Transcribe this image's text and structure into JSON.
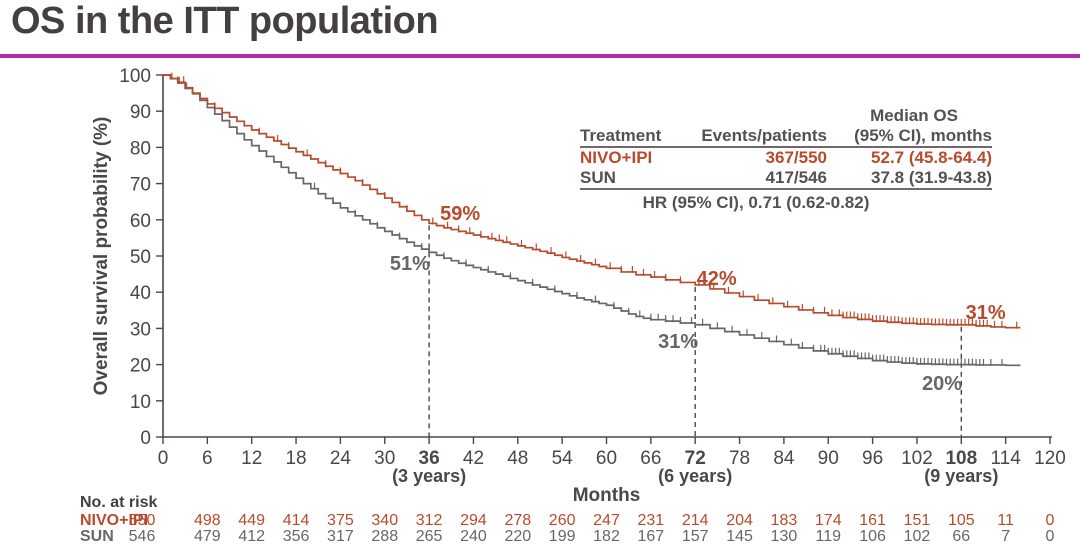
{
  "slide": {
    "title": "OS in the ITT population"
  },
  "colors": {
    "nivo": "#b84b2c",
    "sun": "#676767",
    "axis": "#4c4747",
    "title": "#454040",
    "accent": "#b32aab",
    "table_text": "#565050"
  },
  "stats_table": {
    "median_header": "Median OS",
    "columns": [
      "Treatment",
      "Events/patients",
      "(95% CI), months"
    ],
    "rows": [
      {
        "treatment": "NIVO+IPI",
        "events_patients": "367/550",
        "median_os": "52.7 (45.8-64.4)",
        "color_key": "nivo"
      },
      {
        "treatment": "SUN",
        "events_patients": "417/546",
        "median_os": "37.8 (31.9-43.8)",
        "color_key": "sun"
      }
    ],
    "footer": "HR (95% CI), 0.71 (0.62-0.82)"
  },
  "chart_data": {
    "type": "line",
    "subtype": "kaplan-meier-step",
    "xlabel": "Months",
    "ylabel": "Overall survival probability (%)",
    "xlim": [
      0,
      120
    ],
    "ylim": [
      0,
      100
    ],
    "x_ticks": [
      0,
      6,
      12,
      18,
      24,
      30,
      36,
      42,
      48,
      54,
      60,
      66,
      72,
      78,
      84,
      90,
      96,
      102,
      108,
      114,
      120
    ],
    "y_ticks": [
      0,
      10,
      20,
      30,
      40,
      50,
      60,
      70,
      80,
      90,
      100
    ],
    "x_end": 116,
    "grid": false,
    "landmarks": [
      {
        "month": 36,
        "year_label": "(3 years)",
        "nivo_pct": 59,
        "sun_pct": 51
      },
      {
        "month": 72,
        "year_label": "(6 years)",
        "nivo_pct": 42,
        "sun_pct": 31
      },
      {
        "month": 108,
        "year_label": "(9 years)",
        "nivo_pct": 31,
        "sun_pct": 20
      }
    ],
    "annotations": [
      {
        "text": "59%",
        "month": 40.2,
        "pct": 61.9,
        "color_key": "nivo"
      },
      {
        "text": "51%",
        "month": 33.4,
        "pct": 48.0,
        "color_key": "sun"
      },
      {
        "text": "42%",
        "month": 74.9,
        "pct": 43.9,
        "color_key": "nivo"
      },
      {
        "text": "31%",
        "month": 69.7,
        "pct": 26.5,
        "color_key": "sun"
      },
      {
        "text": "31%",
        "month": 111.3,
        "pct": 34.5,
        "color_key": "nivo"
      },
      {
        "text": "20%",
        "month": 105.4,
        "pct": 14.9,
        "color_key": "sun"
      }
    ],
    "series": [
      {
        "name": "NIVO+IPI",
        "color_key": "nivo",
        "points": [
          [
            0,
            100
          ],
          [
            1,
            99
          ],
          [
            2,
            98
          ],
          [
            3,
            96.5
          ],
          [
            4,
            95
          ],
          [
            5,
            93.5
          ],
          [
            6,
            92
          ],
          [
            7,
            90.8
          ],
          [
            8,
            89.6
          ],
          [
            9,
            88.4
          ],
          [
            10,
            87.2
          ],
          [
            11,
            86
          ],
          [
            12,
            84.8
          ],
          [
            13,
            83.8
          ],
          [
            14,
            82.8
          ],
          [
            15,
            81.8
          ],
          [
            16,
            80.8
          ],
          [
            17,
            79.8
          ],
          [
            18,
            78.8
          ],
          [
            19,
            77.8
          ],
          [
            20,
            76.8
          ],
          [
            21,
            75.8
          ],
          [
            22,
            74.8
          ],
          [
            23,
            73.8
          ],
          [
            24,
            72.8
          ],
          [
            25,
            71.8
          ],
          [
            26,
            70.8
          ],
          [
            27,
            69.6
          ],
          [
            28,
            68.4
          ],
          [
            29,
            67.2
          ],
          [
            30,
            66
          ],
          [
            31,
            64.8
          ],
          [
            32,
            63.6
          ],
          [
            33,
            62.4
          ],
          [
            34,
            61.2
          ],
          [
            35,
            60
          ],
          [
            36,
            59
          ],
          [
            37,
            58.4
          ],
          [
            38,
            57.8
          ],
          [
            39,
            57.3
          ],
          [
            40,
            56.8
          ],
          [
            41,
            56.3
          ],
          [
            42,
            55.8
          ],
          [
            43,
            55.3
          ],
          [
            44,
            54.8
          ],
          [
            45,
            54.3
          ],
          [
            46,
            53.8
          ],
          [
            47,
            53.3
          ],
          [
            48,
            52.8
          ],
          [
            49,
            52.3
          ],
          [
            50,
            51.8
          ],
          [
            51,
            51.3
          ],
          [
            52,
            50.8
          ],
          [
            53,
            50.2
          ],
          [
            54,
            49.6
          ],
          [
            55,
            49.1
          ],
          [
            56,
            48.6
          ],
          [
            57,
            48.1
          ],
          [
            58,
            47.6
          ],
          [
            59,
            47.1
          ],
          [
            60,
            46.6
          ],
          [
            62,
            45.6
          ],
          [
            64,
            44.8
          ],
          [
            66,
            44.2
          ],
          [
            68,
            43.4
          ],
          [
            70,
            42.7
          ],
          [
            72,
            42
          ],
          [
            74,
            40.9
          ],
          [
            76,
            39.8
          ],
          [
            78,
            38.8
          ],
          [
            80,
            37.8
          ],
          [
            82,
            36.9
          ],
          [
            84,
            36
          ],
          [
            86,
            35.1
          ],
          [
            88,
            34.3
          ],
          [
            90,
            33.6
          ],
          [
            92,
            33
          ],
          [
            94,
            32.5
          ],
          [
            96,
            32
          ],
          [
            98,
            31.7
          ],
          [
            100,
            31.4
          ],
          [
            102,
            31.2
          ],
          [
            104,
            31.1
          ],
          [
            106,
            31
          ],
          [
            108,
            31
          ],
          [
            110,
            30.7
          ],
          [
            112,
            30.4
          ],
          [
            114,
            30.2
          ]
        ],
        "censor_months": [
          1.2,
          2.0,
          2.8,
          7,
          13,
          15.5,
          17,
          19.5,
          22,
          24,
          27,
          30,
          33,
          36.5,
          38.5,
          40,
          41.5,
          43,
          44.5,
          45.5,
          46.5,
          48.5,
          50.5,
          52.5,
          54.5,
          56.5,
          58.5,
          60.5,
          62,
          63.5,
          65,
          66.5,
          68,
          70,
          72.5,
          74.5,
          76.5,
          78.5,
          80.5,
          82.5,
          84.5,
          86.5,
          88,
          89.5,
          90.5,
          91.5,
          92,
          92.5,
          93,
          93.5,
          94,
          94.5,
          95,
          95.5,
          96,
          96.5,
          97,
          97.5,
          98,
          98.5,
          99,
          99.5,
          100,
          100.5,
          101,
          101.5,
          102,
          102.5,
          103,
          103.5,
          104,
          104.5,
          105,
          105.5,
          106,
          106.5,
          107,
          107.5,
          108,
          108.5,
          109,
          109.5,
          110,
          110.5,
          111,
          111.5,
          112.5,
          113.5,
          115.5
        ]
      },
      {
        "name": "SUN",
        "color_key": "sun",
        "points": [
          [
            0,
            100
          ],
          [
            1,
            99
          ],
          [
            2,
            97.8
          ],
          [
            3,
            96.3
          ],
          [
            4,
            94.8
          ],
          [
            5,
            93
          ],
          [
            6,
            91
          ],
          [
            7,
            89.2
          ],
          [
            8,
            87.4
          ],
          [
            9,
            85.6
          ],
          [
            10,
            83.8
          ],
          [
            11,
            82.1
          ],
          [
            12,
            80.5
          ],
          [
            13,
            79
          ],
          [
            14,
            77.5
          ],
          [
            15,
            76
          ],
          [
            16,
            74.5
          ],
          [
            17,
            73
          ],
          [
            18,
            71.5
          ],
          [
            19,
            70
          ],
          [
            20,
            68.6
          ],
          [
            21,
            67.2
          ],
          [
            22,
            65.9
          ],
          [
            23,
            64.6
          ],
          [
            24,
            63.3
          ],
          [
            25,
            62.2
          ],
          [
            26,
            61.1
          ],
          [
            27,
            60
          ],
          [
            28,
            58.9
          ],
          [
            29,
            57.8
          ],
          [
            30,
            56.8
          ],
          [
            31,
            55.8
          ],
          [
            32,
            54.8
          ],
          [
            33,
            53.8
          ],
          [
            34,
            52.8
          ],
          [
            35,
            51.9
          ],
          [
            36,
            51
          ],
          [
            37,
            50.2
          ],
          [
            38,
            49.4
          ],
          [
            39,
            48.7
          ],
          [
            40,
            48
          ],
          [
            41,
            47.4
          ],
          [
            42,
            46.8
          ],
          [
            43,
            46.2
          ],
          [
            44,
            45.6
          ],
          [
            45,
            45
          ],
          [
            46,
            44.4
          ],
          [
            47,
            43.8
          ],
          [
            48,
            43.2
          ],
          [
            49,
            42.6
          ],
          [
            50,
            42
          ],
          [
            51,
            41.4
          ],
          [
            52,
            40.8
          ],
          [
            53,
            40.2
          ],
          [
            54,
            39.6
          ],
          [
            55,
            39
          ],
          [
            56,
            38.4
          ],
          [
            57,
            37.9
          ],
          [
            58,
            37.4
          ],
          [
            59,
            36.9
          ],
          [
            60,
            36.4
          ],
          [
            61,
            35.6
          ],
          [
            62,
            34.8
          ],
          [
            63,
            34
          ],
          [
            64,
            33.3
          ],
          [
            65,
            32.8
          ],
          [
            66,
            32.4
          ],
          [
            68,
            32
          ],
          [
            70,
            31.5
          ],
          [
            72,
            31
          ],
          [
            74,
            30
          ],
          [
            76,
            29.1
          ],
          [
            78,
            28.2
          ],
          [
            80,
            27.3
          ],
          [
            82,
            26.4
          ],
          [
            84,
            25.5
          ],
          [
            86,
            24.6
          ],
          [
            88,
            23.8
          ],
          [
            90,
            23
          ],
          [
            92,
            22.3
          ],
          [
            94,
            21.7
          ],
          [
            96,
            21.1
          ],
          [
            98,
            20.7
          ],
          [
            100,
            20.4
          ],
          [
            102,
            20.2
          ],
          [
            104,
            20.1
          ],
          [
            106,
            20
          ],
          [
            108,
            20
          ],
          [
            110,
            19.9
          ],
          [
            112,
            19.9
          ],
          [
            114,
            19.8
          ]
        ],
        "censor_months": [
          2.2,
          3.2,
          8,
          14,
          18,
          20.5,
          23,
          26,
          29,
          32,
          35,
          38,
          41,
          44,
          47,
          50,
          53,
          56,
          58.5,
          61,
          63,
          64.5,
          66,
          67,
          68,
          69,
          70,
          71.5,
          73,
          75,
          77,
          79,
          81,
          83,
          85,
          86.5,
          88,
          89,
          89.5,
          90,
          90.5,
          91,
          91.5,
          92,
          92.5,
          93,
          93.5,
          94,
          94.5,
          95,
          95.5,
          96,
          96.5,
          97,
          97.5,
          98,
          98.5,
          99,
          99.5,
          100,
          100.5,
          101,
          101.5,
          102,
          102.5,
          103,
          103.5,
          104,
          104.5,
          105,
          105.5,
          106,
          106.5,
          107,
          107.5,
          108,
          108.5,
          109,
          109.5,
          110,
          110.5,
          111,
          112,
          113.5
        ]
      }
    ]
  },
  "risk_table": {
    "title": "No. at risk",
    "months": [
      0,
      6,
      12,
      18,
      24,
      30,
      36,
      42,
      48,
      54,
      60,
      66,
      72,
      78,
      84,
      90,
      96,
      102,
      108,
      114,
      120
    ],
    "rows": [
      {
        "name": "NIVO+IPI",
        "color_key": "nivo",
        "values": [
          550,
          498,
          449,
          414,
          375,
          340,
          312,
          294,
          278,
          260,
          247,
          231,
          214,
          204,
          183,
          174,
          161,
          151,
          105,
          11,
          0
        ]
      },
      {
        "name": "SUN",
        "color_key": "sun",
        "values": [
          546,
          479,
          412,
          356,
          317,
          288,
          265,
          240,
          220,
          199,
          182,
          167,
          157,
          145,
          130,
          119,
          106,
          102,
          66,
          7,
          0
        ]
      }
    ]
  }
}
